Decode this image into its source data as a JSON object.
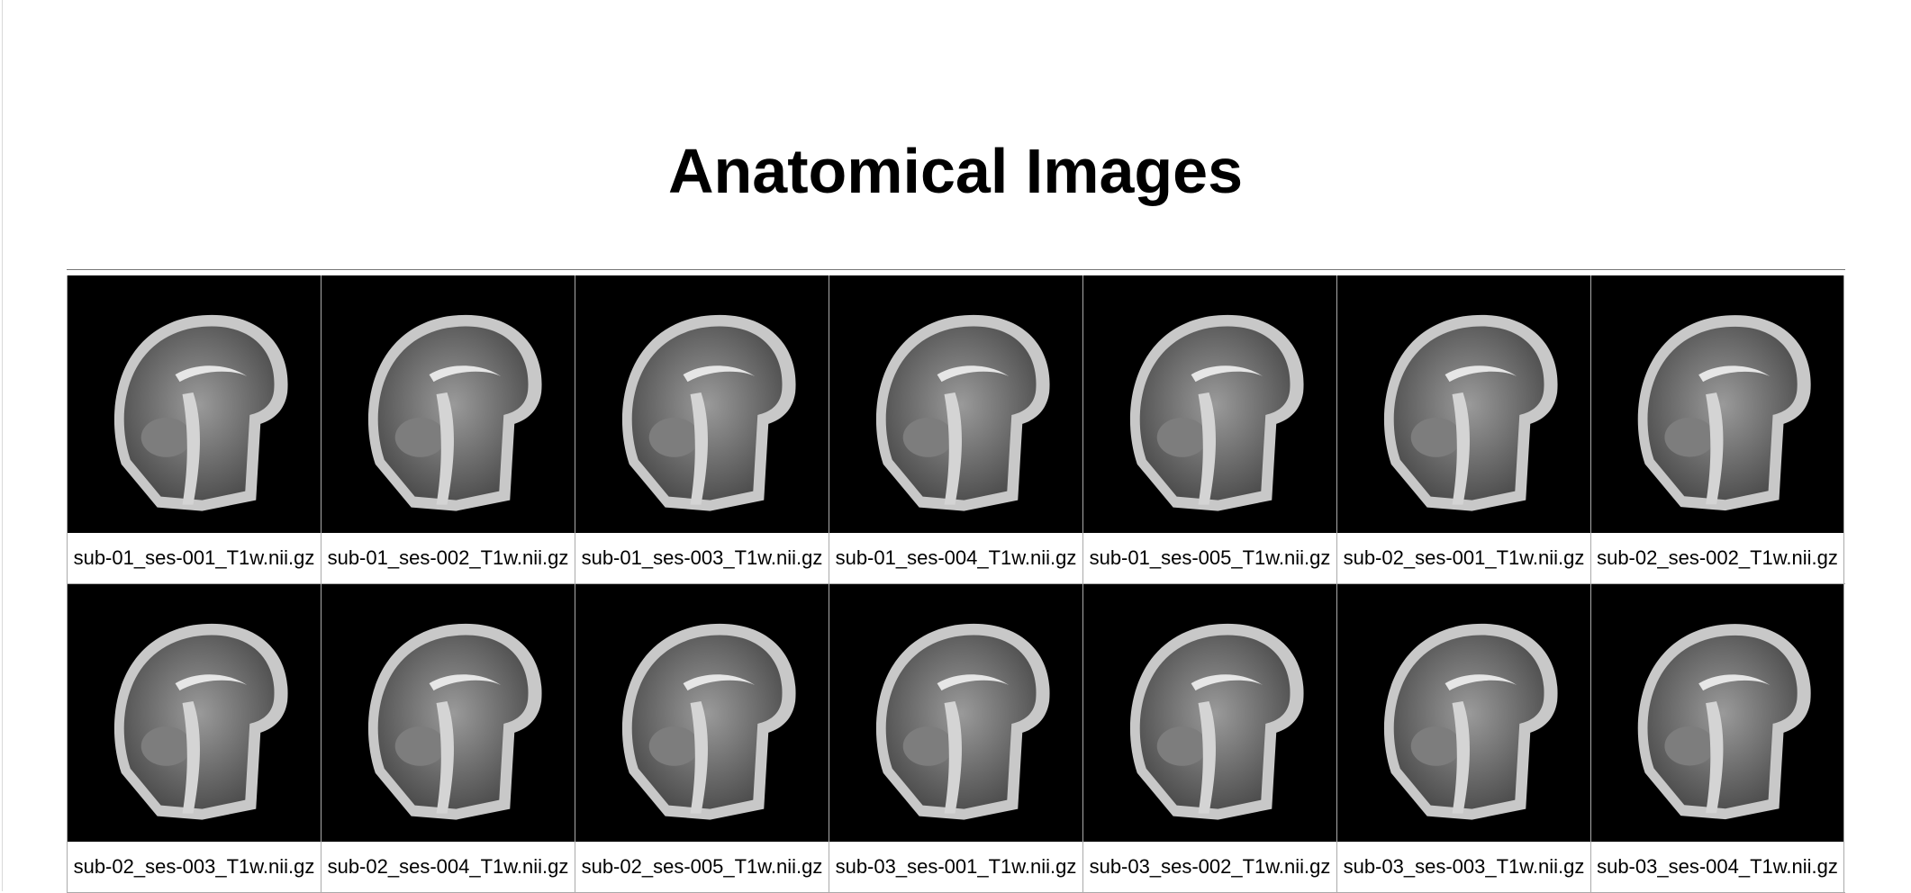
{
  "page": {
    "title": "Anatomical Images"
  },
  "images": [
    "sub-01_ses-001_T1w.nii.gz",
    "sub-01_ses-002_T1w.nii.gz",
    "sub-01_ses-003_T1w.nii.gz",
    "sub-01_ses-004_T1w.nii.gz",
    "sub-01_ses-005_T1w.nii.gz",
    "sub-02_ses-001_T1w.nii.gz",
    "sub-02_ses-002_T1w.nii.gz",
    "sub-02_ses-003_T1w.nii.gz",
    "sub-02_ses-004_T1w.nii.gz",
    "sub-02_ses-005_T1w.nii.gz",
    "sub-03_ses-001_T1w.nii.gz",
    "sub-03_ses-002_T1w.nii.gz",
    "sub-03_ses-003_T1w.nii.gz",
    "sub-03_ses-004_T1w.nii.gz"
  ]
}
